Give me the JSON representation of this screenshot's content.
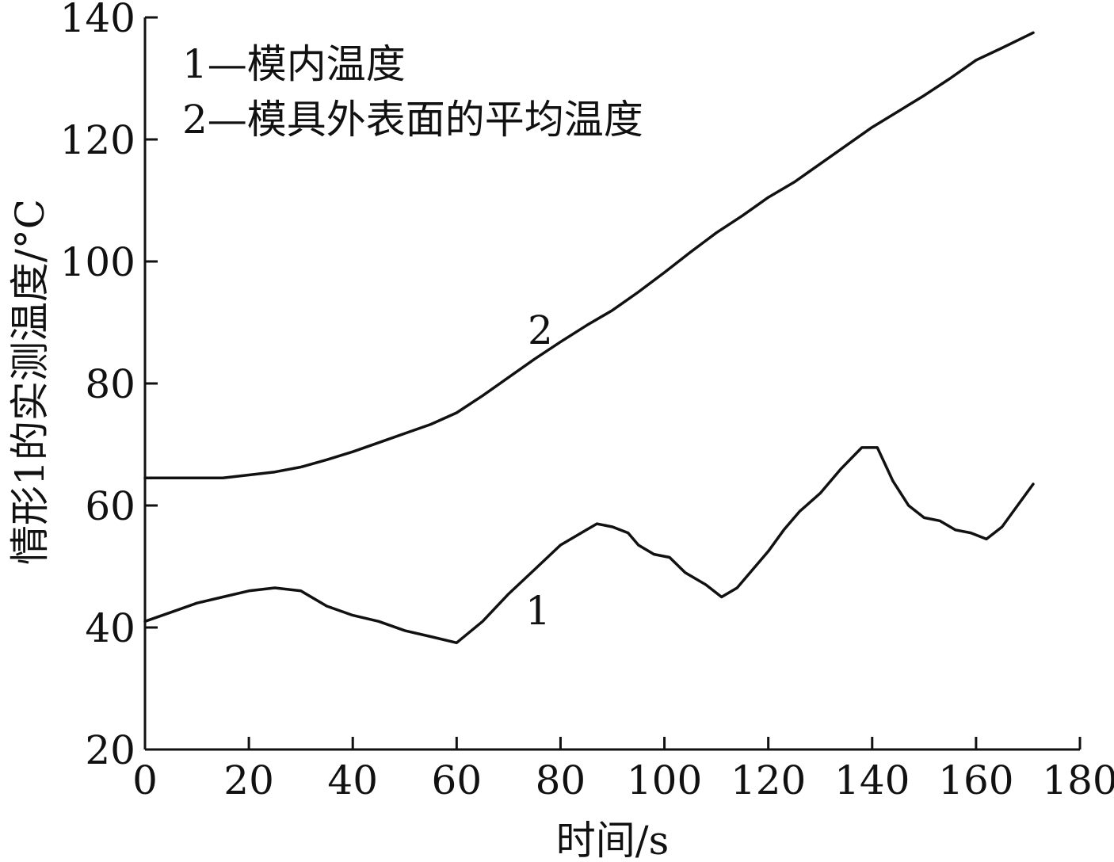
{
  "chart_data": {
    "type": "line",
    "xlabel": "时间/s",
    "ylabel": "情形1的实测温度/°C",
    "xlim": [
      0,
      180
    ],
    "ylim": [
      20,
      140
    ],
    "xticks": [
      0,
      20,
      40,
      60,
      80,
      100,
      120,
      140,
      160,
      180
    ],
    "yticks": [
      20,
      40,
      60,
      80,
      100,
      120,
      140
    ],
    "grid": false,
    "legend": {
      "placement": "top-left",
      "entries": [
        "1—模内温度",
        "2—模具外表面的平均温度"
      ]
    },
    "series": [
      {
        "label": "1",
        "x": [
          0,
          5,
          10,
          15,
          20,
          25,
          30,
          35,
          40,
          45,
          50,
          55,
          60,
          65,
          70,
          75,
          80,
          85,
          87,
          90,
          93,
          95,
          98,
          101,
          104,
          108,
          111,
          114,
          117,
          120,
          123,
          126,
          130,
          134,
          138,
          141,
          144,
          147,
          150,
          153,
          156,
          159,
          162,
          165,
          168,
          171
        ],
        "y": [
          41,
          42.5,
          44,
          45,
          46,
          46.5,
          46,
          43.5,
          42,
          41,
          39.5,
          38.5,
          37.5,
          41,
          45.5,
          49.5,
          53.5,
          56,
          57,
          56.5,
          55.5,
          53.5,
          52,
          51.5,
          49,
          47,
          45,
          46.5,
          49.5,
          52.5,
          56,
          59,
          62,
          66,
          69.5,
          69.5,
          64,
          60,
          58,
          57.5,
          56,
          55.5,
          54.5,
          56.5,
          60,
          63.5
        ]
      },
      {
        "label": "2",
        "x": [
          0,
          5,
          10,
          15,
          20,
          25,
          30,
          35,
          40,
          45,
          50,
          55,
          60,
          65,
          70,
          75,
          80,
          85,
          90,
          95,
          100,
          105,
          110,
          115,
          120,
          125,
          130,
          135,
          140,
          145,
          150,
          155,
          160,
          165,
          171
        ],
        "y": [
          64.5,
          64.5,
          64.5,
          64.5,
          65,
          65.5,
          66.3,
          67.5,
          68.8,
          70.3,
          71.8,
          73.3,
          75.2,
          78,
          81,
          84,
          86.8,
          89.5,
          92,
          95,
          98.2,
          101.5,
          104.7,
          107.5,
          110.5,
          113,
          116,
          119,
          122,
          124.6,
          127.2,
          130,
          133,
          135,
          137.5
        ]
      }
    ]
  }
}
